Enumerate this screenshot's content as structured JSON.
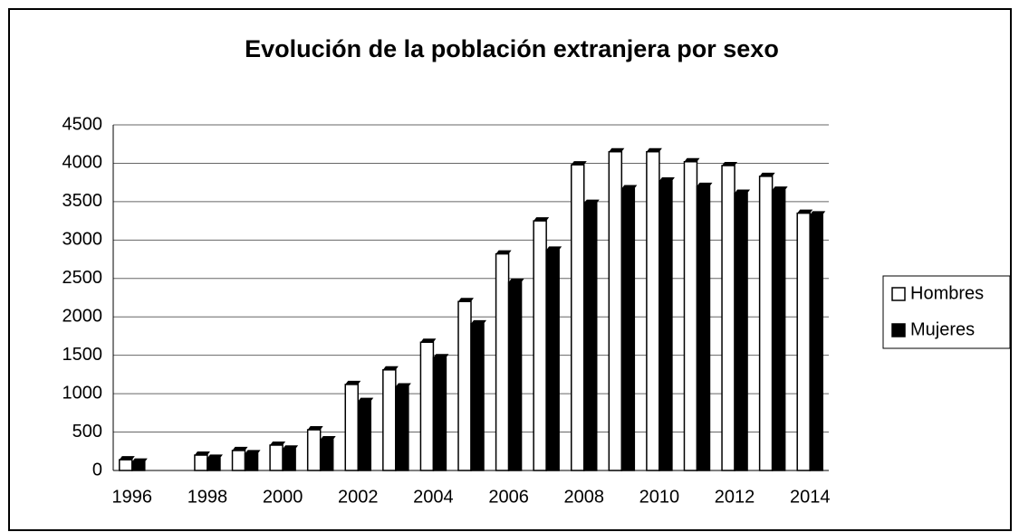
{
  "chart_data": {
    "type": "bar",
    "title": "Evolución de la población extranjera por sexo",
    "categories": [
      "1996",
      null,
      "1998",
      null,
      "2000",
      null,
      "2002",
      null,
      "2004",
      null,
      "2006",
      null,
      "2008",
      null,
      "2010",
      null,
      "2012",
      null,
      "2014"
    ],
    "series": [
      {
        "name": "Hombres",
        "color": "#ffffff",
        "values": [
          140,
          null,
          200,
          260,
          330,
          530,
          1120,
          1310,
          1670,
          2200,
          2820,
          3250,
          3980,
          4150,
          4150,
          4020,
          3970,
          3830,
          3350
        ]
      },
      {
        "name": "Mujeres",
        "color": "#000000",
        "values": [
          110,
          null,
          160,
          220,
          280,
          400,
          900,
          1090,
          1470,
          1910,
          2450,
          2870,
          3480,
          3670,
          3770,
          3700,
          3610,
          3650,
          3330
        ]
      }
    ],
    "ylim": [
      0,
      4500
    ],
    "yticks": [
      0,
      500,
      1000,
      1500,
      2000,
      2500,
      3000,
      3500,
      4000,
      4500
    ],
    "grid": true,
    "legend": "right"
  }
}
